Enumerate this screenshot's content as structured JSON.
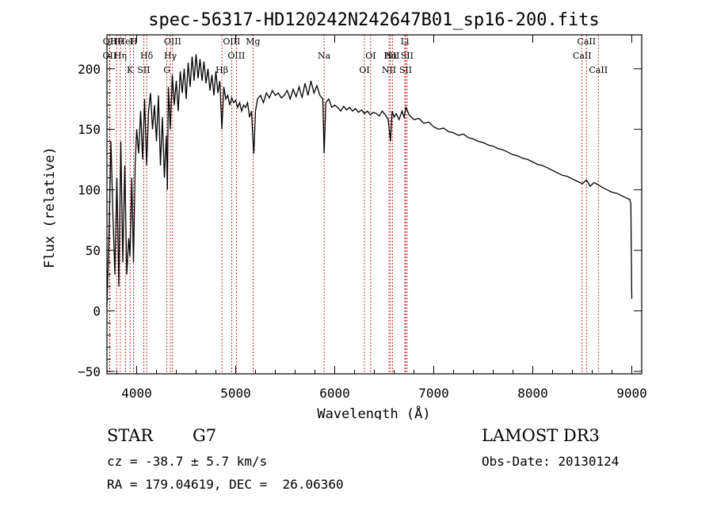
{
  "chart_data": {
    "type": "line",
    "title": "spec-56317-HD120242N242647B01_sp16-200.fits",
    "xlabel": "Wavelength (Å)",
    "ylabel": "Flux (relative)",
    "xlim": [
      3700,
      9100
    ],
    "ylim": [
      -52,
      228
    ],
    "xticks": [
      4000,
      5000,
      6000,
      7000,
      8000,
      9000
    ],
    "yticks": [
      -50,
      0,
      50,
      100,
      150,
      200
    ],
    "grid": false,
    "series": [
      {
        "name": "flux",
        "x": [
          3700,
          3720,
          3740,
          3760,
          3780,
          3800,
          3820,
          3840,
          3860,
          3880,
          3900,
          3920,
          3933,
          3950,
          3968,
          3985,
          4000,
          4020,
          4040,
          4060,
          4080,
          4101,
          4120,
          4140,
          4160,
          4180,
          4200,
          4220,
          4240,
          4260,
          4280,
          4300,
          4310,
          4320,
          4340,
          4360,
          4380,
          4400,
          4420,
          4440,
          4460,
          4480,
          4500,
          4520,
          4540,
          4560,
          4580,
          4600,
          4620,
          4640,
          4660,
          4680,
          4700,
          4720,
          4740,
          4760,
          4780,
          4800,
          4820,
          4840,
          4861,
          4880,
          4900,
          4920,
          4940,
          4960,
          4980,
          5000,
          5020,
          5040,
          5060,
          5080,
          5100,
          5120,
          5140,
          5160,
          5172,
          5183,
          5200,
          5220,
          5250,
          5280,
          5310,
          5340,
          5370,
          5400,
          5430,
          5460,
          5490,
          5520,
          5550,
          5580,
          5610,
          5640,
          5670,
          5700,
          5730,
          5760,
          5790,
          5820,
          5850,
          5880,
          5893,
          5910,
          5940,
          5970,
          6000,
          6030,
          6060,
          6090,
          6120,
          6150,
          6180,
          6210,
          6240,
          6270,
          6300,
          6330,
          6360,
          6390,
          6420,
          6450,
          6480,
          6510,
          6540,
          6563,
          6580,
          6600,
          6620,
          6650,
          6680,
          6700,
          6720,
          6750,
          6800,
          6850,
          6900,
          6950,
          7000,
          7050,
          7100,
          7150,
          7200,
          7250,
          7300,
          7350,
          7400,
          7450,
          7500,
          7550,
          7600,
          7650,
          7700,
          7750,
          7800,
          7850,
          7900,
          7950,
          8000,
          8050,
          8100,
          8150,
          8200,
          8250,
          8300,
          8350,
          8400,
          8450,
          8500,
          8542,
          8580,
          8620,
          8662,
          8700,
          8750,
          8800,
          8850,
          8900,
          8950,
          8980,
          8990,
          9000
        ],
        "values": [
          5,
          60,
          140,
          80,
          30,
          110,
          20,
          140,
          40,
          120,
          30,
          60,
          45,
          110,
          40,
          120,
          150,
          130,
          165,
          125,
          175,
          120,
          165,
          180,
          150,
          170,
          140,
          178,
          120,
          160,
          110,
          145,
          100,
          185,
          150,
          195,
          170,
          190,
          165,
          198,
          180,
          200,
          175,
          205,
          185,
          210,
          190,
          212,
          192,
          208,
          190,
          206,
          188,
          200,
          182,
          195,
          178,
          198,
          180,
          190,
          150,
          185,
          175,
          178,
          170,
          176,
          172,
          174,
          168,
          172,
          165,
          170,
          168,
          172,
          160,
          165,
          145,
          130,
          165,
          175,
          178,
          172,
          180,
          176,
          182,
          178,
          180,
          176,
          178,
          182,
          175,
          183,
          177,
          185,
          176,
          188,
          178,
          190,
          180,
          186,
          178,
          175,
          130,
          172,
          175,
          168,
          170,
          168,
          165,
          169,
          166,
          168,
          165,
          167,
          164,
          166,
          163,
          165,
          162,
          164,
          163,
          161,
          165,
          162,
          158,
          140,
          165,
          160,
          163,
          158,
          165,
          160,
          168,
          162,
          158,
          159,
          155,
          156,
          152,
          150,
          151,
          148,
          147,
          145,
          146,
          143,
          142,
          140,
          139,
          137,
          136,
          134,
          133,
          131,
          129,
          128,
          126,
          125,
          123,
          121,
          120,
          118,
          116,
          114,
          112,
          111,
          109,
          107,
          105,
          108,
          103,
          106,
          104,
          102,
          100,
          98,
          97,
          95,
          93,
          92,
          88,
          10
        ]
      }
    ],
    "line_markers": [
      {
        "name": "Hθ",
        "wavelength": 3798
      },
      {
        "name": "OII",
        "wavelength": 3727
      },
      {
        "name": "OII",
        "wavelength": 3729
      },
      {
        "name": "HeI",
        "wavelength": 3889
      },
      {
        "name": "Hη",
        "wavelength": 3835
      },
      {
        "name": "K",
        "wavelength": 3933
      },
      {
        "name": "H",
        "wavelength": 3968
      },
      {
        "name": "Hδ",
        "wavelength": 4101
      },
      {
        "name": "SII",
        "wavelength": 4072
      },
      {
        "name": "OIII",
        "wavelength": 4363
      },
      {
        "name": "Hγ",
        "wavelength": 4340
      },
      {
        "name": "G",
        "wavelength": 4305
      },
      {
        "name": "OIII",
        "wavelength": 5007
      },
      {
        "name": "OIII",
        "wavelength": 4959
      },
      {
        "name": "Hβ",
        "wavelength": 4861
      },
      {
        "name": "Mg",
        "wavelength": 5175
      },
      {
        "name": "Na",
        "wavelength": 5893
      },
      {
        "name": "OI",
        "wavelength": 6300
      },
      {
        "name": "OI",
        "wavelength": 6363
      },
      {
        "name": "Hα",
        "wavelength": 6563
      },
      {
        "name": "NII",
        "wavelength": 6548
      },
      {
        "name": "NII",
        "wavelength": 6583
      },
      {
        "name": "SII",
        "wavelength": 6716
      },
      {
        "name": "SII",
        "wavelength": 6731
      },
      {
        "name": "Li",
        "wavelength": 6708
      },
      {
        "name": "CaII",
        "wavelength": 8498
      },
      {
        "name": "CaII",
        "wavelength": 8542
      },
      {
        "name": "CaII",
        "wavelength": 8662
      }
    ]
  },
  "info": {
    "object_class": "STAR",
    "subclass": "G7",
    "survey": "LAMOST DR3",
    "cz": "cz = -38.7 ± 5.7 km/s",
    "obs_date": "Obs-Date: 20130124",
    "coords": "RA = 179.04619, DEC =  26.06360"
  },
  "colors": {
    "axis": "#000000",
    "line": "#000000",
    "marker": "#b00000"
  }
}
